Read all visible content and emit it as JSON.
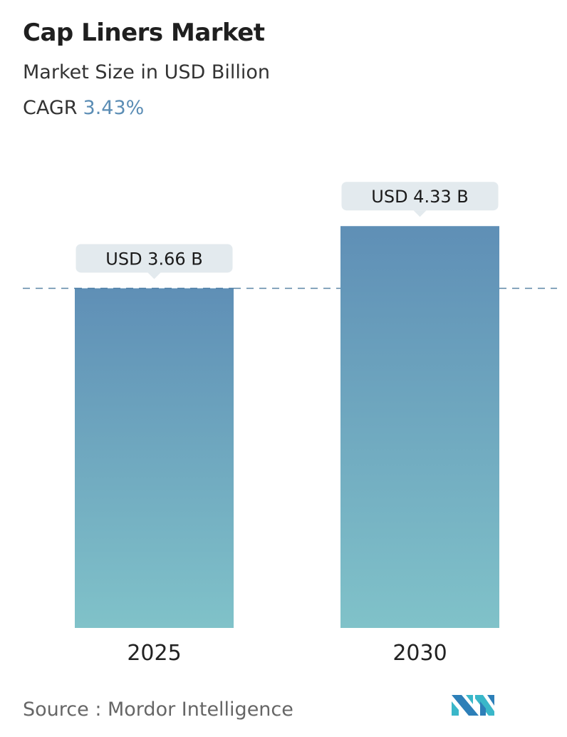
{
  "title": "Cap Liners Market",
  "subtitle": "Market Size in USD Billion",
  "cagr_label": "CAGR",
  "cagr_value": "3.43%",
  "source": "Source :  Mordor Intelligence",
  "logo_text": "Mordor Intelligence",
  "colors": {
    "bar_top": "#5f8fb6",
    "bar_bottom": "#80c2c9",
    "label_bg": "#e3eaee",
    "dash": "#5b86a6",
    "cagr": "#5b8db5"
  },
  "chart_data": {
    "type": "bar",
    "categories": [
      "2025",
      "2030"
    ],
    "values": [
      3.66,
      4.33
    ],
    "data_labels": [
      "USD 3.66 B",
      "USD 4.33 B"
    ],
    "title": "Cap Liners Market",
    "ylabel": "Market Size in USD Billion",
    "reference_line": 3.66,
    "grid": false
  }
}
